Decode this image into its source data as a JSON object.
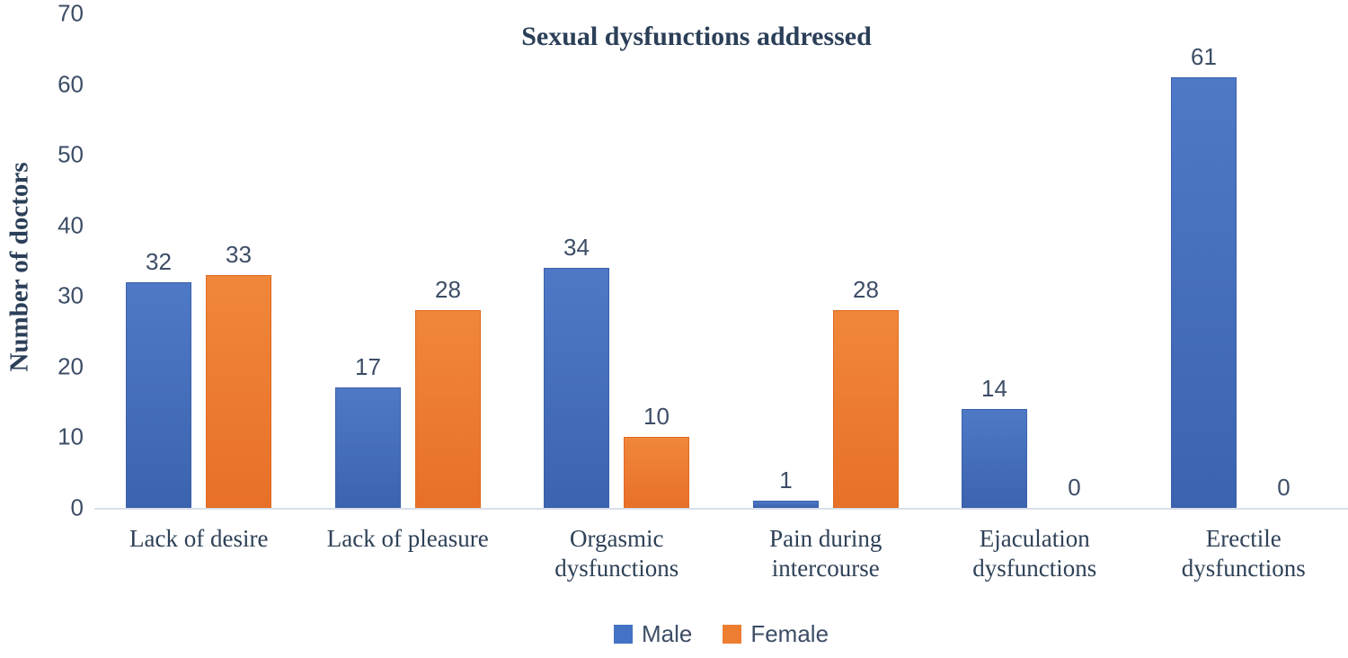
{
  "chart_data": {
    "type": "bar",
    "title": "Sexual dysfunctions addressed",
    "xlabel": "",
    "ylabel": "Number of doctors",
    "ylim": [
      0,
      70
    ],
    "yticks": [
      0,
      10,
      20,
      30,
      40,
      50,
      60,
      70
    ],
    "grid": false,
    "legend_position": "bottom",
    "data_labels": true,
    "categories": [
      "Lack of desire",
      "Lack of pleasure",
      "Orgasmic dysfunctions",
      "Pain during intercourse",
      "Ejaculation dysfunctions",
      "Erectile dysfunctions"
    ],
    "series": [
      {
        "name": "Male",
        "color": "#4472C4",
        "values": [
          32,
          17,
          34,
          1,
          14,
          61
        ]
      },
      {
        "name": "Female",
        "color": "#ED7D31",
        "values": [
          33,
          28,
          10,
          28,
          0,
          0
        ]
      }
    ]
  },
  "colors": {
    "male_bar": "#4472C4",
    "female_bar": "#ED7D31",
    "text_navy": "#2e4157",
    "label_text": "#3d4d66",
    "axis_line": "#d9dfe8",
    "background": "#ffffff"
  }
}
